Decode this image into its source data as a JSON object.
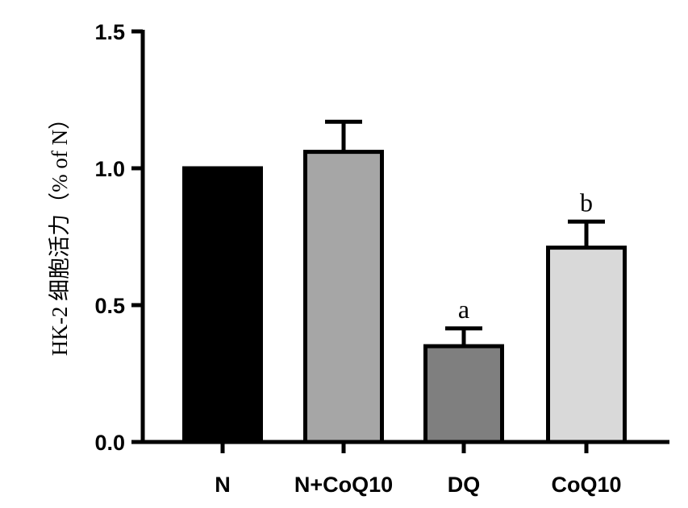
{
  "chart_data": {
    "type": "bar",
    "title": "",
    "xlabel": "",
    "ylabel": "HK-2 细胞活力（% of N）",
    "ylim": [
      0,
      1.5
    ],
    "yticks": [
      0.0,
      0.5,
      1.0,
      1.5
    ],
    "ytick_labels": [
      "0.0",
      "0.5",
      "1.0",
      "1.5"
    ],
    "categories": [
      "N",
      "N+CoQ10",
      "DQ",
      "CoQ10"
    ],
    "values": [
      1.0,
      1.06,
      0.35,
      0.71
    ],
    "errors": [
      0,
      0.11,
      0.065,
      0.095
    ],
    "annotations": [
      "",
      "",
      "a",
      "b"
    ],
    "colors": [
      "#000000",
      "#a6a6a6",
      "#7f7f7f",
      "#d9d9d9"
    ],
    "edge_color": "#000000",
    "grid": false,
    "legend": "none"
  }
}
